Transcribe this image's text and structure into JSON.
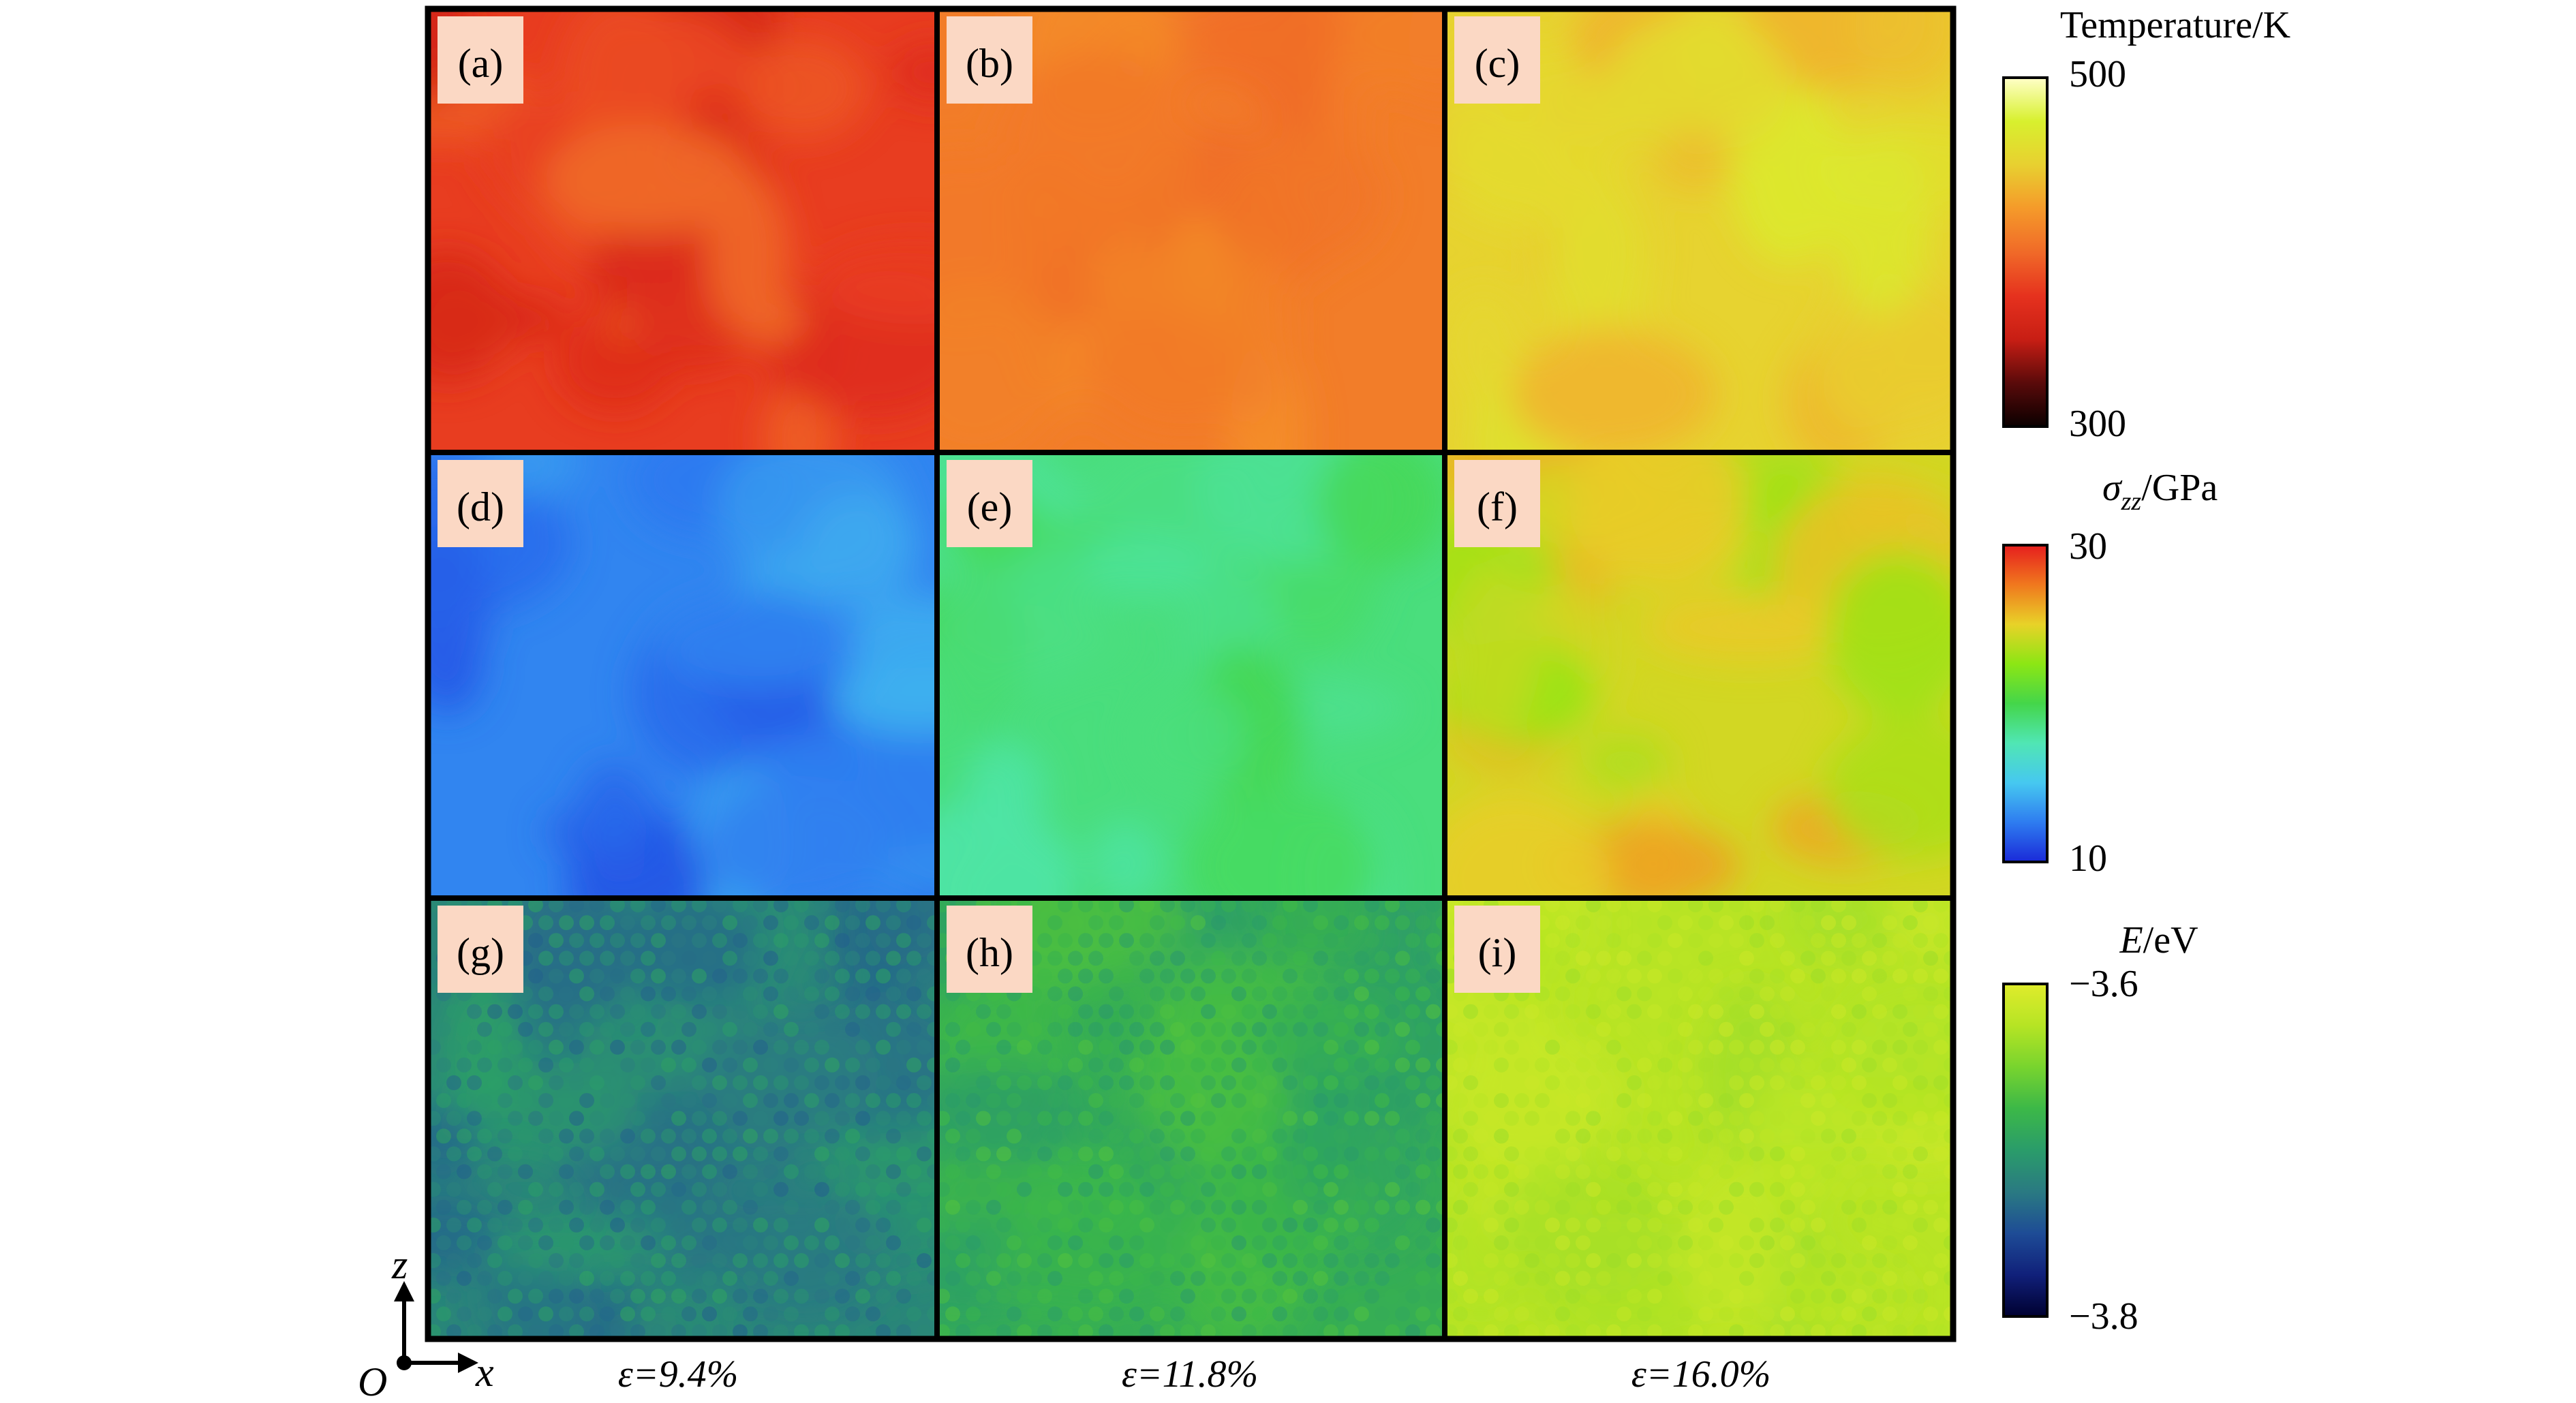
{
  "panels": [
    {
      "label": "(a)",
      "colormap": "temperature",
      "base": 0.4,
      "amp": 0.12,
      "seed": 11,
      "atoms": false
    },
    {
      "label": "(b)",
      "colormap": "temperature",
      "base": 0.55,
      "amp": 0.05,
      "seed": 23,
      "atoms": false
    },
    {
      "label": "(c)",
      "colormap": "temperature",
      "base": 0.76,
      "amp": 0.09,
      "seed": 37,
      "atoms": false
    },
    {
      "label": "(d)",
      "colormap": "stress",
      "base": 0.14,
      "amp": 0.08,
      "seed": 41,
      "atoms": false
    },
    {
      "label": "(e)",
      "colormap": "stress",
      "base": 0.44,
      "amp": 0.06,
      "seed": 53,
      "atoms": false
    },
    {
      "label": "(f)",
      "colormap": "stress",
      "base": 0.72,
      "amp": 0.1,
      "seed": 67,
      "atoms": false
    },
    {
      "label": "(g)",
      "colormap": "energy",
      "base": 0.42,
      "amp": 0.1,
      "seed": 71,
      "atoms": true
    },
    {
      "label": "(h)",
      "colormap": "energy",
      "base": 0.58,
      "amp": 0.08,
      "seed": 83,
      "atoms": true
    },
    {
      "label": "(i)",
      "colormap": "energy",
      "base": 0.88,
      "amp": 0.05,
      "seed": 97,
      "atoms": true
    }
  ],
  "strains": [
    "ε=9.4%",
    "ε=11.8%",
    "ε=16.0%"
  ],
  "colorbars": [
    {
      "title": "Temperature/K",
      "max": "500",
      "min": "300",
      "colormap": "temperature"
    },
    {
      "title_symbol": "σ",
      "title_sub": "zz",
      "title_unit": "/GPa",
      "max": "30",
      "min": "10",
      "colormap": "stress"
    },
    {
      "title_symbol": "E",
      "title_unit": "/eV",
      "max": "−3.6",
      "min": "−3.8",
      "colormap": "energy"
    }
  ],
  "axes": {
    "origin": "O",
    "x": "x",
    "z": "z"
  },
  "colormaps": {
    "temperature": [
      "#0a0000",
      "#5a0a0a",
      "#c81e14",
      "#e6321e",
      "#f06a28",
      "#f59a2a",
      "#e8d030",
      "#d8f02e",
      "#ffffc8"
    ],
    "stress": [
      "#1a2ad8",
      "#2e7cf0",
      "#46c8f0",
      "#50e6b4",
      "#44d64a",
      "#8ce614",
      "#e8d228",
      "#f0781e",
      "#e61e1e"
    ],
    "energy": [
      "#000030",
      "#10207a",
      "#1e4c96",
      "#2a7a82",
      "#2a9c6a",
      "#3cb848",
      "#78d42e",
      "#b6e424",
      "#e0ec2c"
    ]
  },
  "frame_color": "#000000"
}
